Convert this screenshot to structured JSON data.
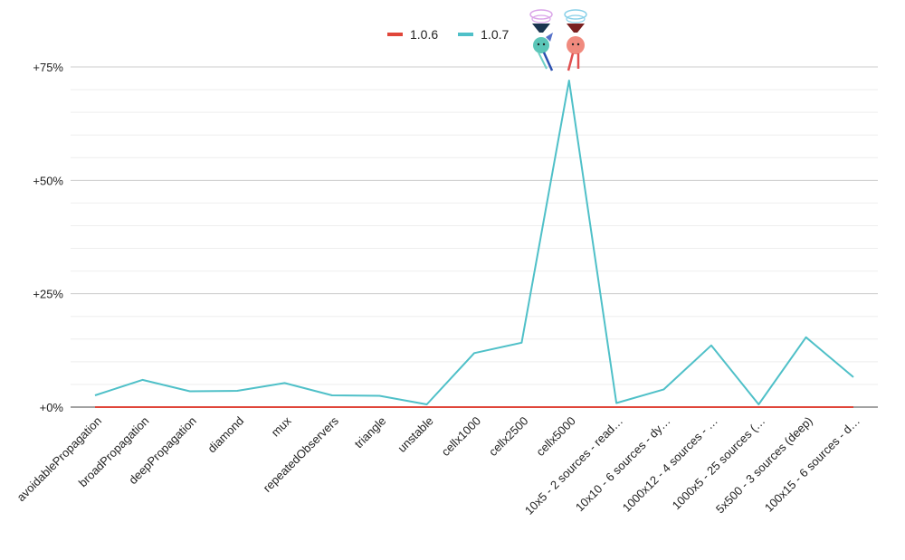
{
  "chart_data": {
    "type": "line",
    "title": "",
    "xlabel": "",
    "ylabel": "",
    "categories": [
      "avoidablePropagation",
      "broadPropagation",
      "deepPropagation",
      "diamond",
      "mux",
      "repeatedObservers",
      "triangle",
      "unstable",
      "cellx1000",
      "cellx2500",
      "cellx5000",
      "10x5 - 2 sources - read…",
      "10x10 - 6 sources - dy…",
      "1000x12 - 4 sources - …",
      "1000x5 - 25 sources (…",
      "5x500 - 3 sources (deep)",
      "100x15 - 6 sources - d…"
    ],
    "series": [
      {
        "name": "1.0.6",
        "color": "#e0463a",
        "values": [
          0,
          0,
          0,
          0,
          0,
          0,
          0,
          0,
          0,
          0,
          0,
          0,
          0,
          0,
          0,
          0,
          0
        ]
      },
      {
        "name": "1.0.7",
        "color": "#4fc0c8",
        "values": [
          2.6,
          6.0,
          3.5,
          3.6,
          5.3,
          2.6,
          2.5,
          0.6,
          11.9,
          14.2,
          72.0,
          0.9,
          3.9,
          13.6,
          0.6,
          15.4,
          6.6
        ]
      }
    ],
    "yticks": [
      "+0%",
      "+25%",
      "+50%",
      "+75%"
    ],
    "ytick_values": [
      0,
      25,
      50,
      75
    ],
    "ylim": [
      0,
      75
    ],
    "grid": true,
    "legend_position": "top-center"
  },
  "mascots": [
    "tinted-mascot",
    "red-mascot"
  ]
}
